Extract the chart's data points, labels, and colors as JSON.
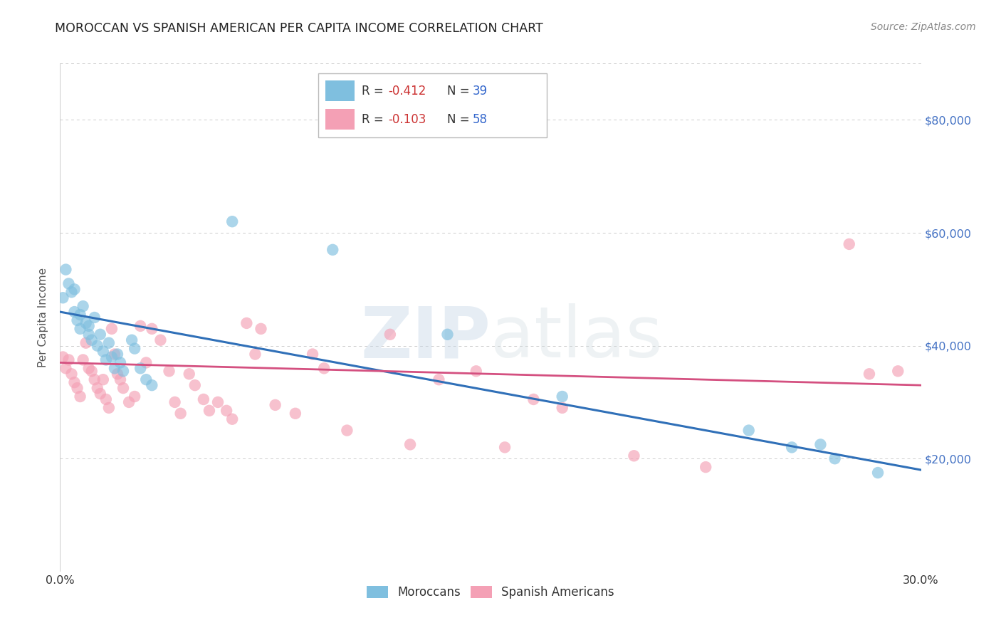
{
  "title": "MOROCCAN VS SPANISH AMERICAN PER CAPITA INCOME CORRELATION CHART",
  "source": "Source: ZipAtlas.com",
  "ylabel": "Per Capita Income",
  "watermark_zip": "ZIP",
  "watermark_atlas": "atlas",
  "ylim": [
    0,
    90000
  ],
  "xlim": [
    0.0,
    0.3
  ],
  "yticks": [
    0,
    20000,
    40000,
    60000,
    80000
  ],
  "ytick_labels": [
    "",
    "$20,000",
    "$40,000",
    "$60,000",
    "$80,000"
  ],
  "xtick_labels_show": [
    "0.0%",
    "30.0%"
  ],
  "blue_color": "#7fbfdf",
  "pink_color": "#f4a0b5",
  "blue_line_color": "#3070b8",
  "pink_line_color": "#d45080",
  "blue_intercept": 46000,
  "blue_slope": -93333,
  "pink_intercept": 37000,
  "pink_slope": -13333,
  "blue_points": [
    [
      0.001,
      48500
    ],
    [
      0.002,
      53500
    ],
    [
      0.003,
      51000
    ],
    [
      0.004,
      49500
    ],
    [
      0.005,
      50000
    ],
    [
      0.005,
      46000
    ],
    [
      0.006,
      44500
    ],
    [
      0.007,
      45500
    ],
    [
      0.007,
      43000
    ],
    [
      0.008,
      47000
    ],
    [
      0.009,
      44000
    ],
    [
      0.01,
      43500
    ],
    [
      0.01,
      42000
    ],
    [
      0.011,
      41000
    ],
    [
      0.012,
      45000
    ],
    [
      0.013,
      40000
    ],
    [
      0.014,
      42000
    ],
    [
      0.015,
      39000
    ],
    [
      0.016,
      37500
    ],
    [
      0.017,
      40500
    ],
    [
      0.018,
      38000
    ],
    [
      0.019,
      36000
    ],
    [
      0.02,
      38500
    ],
    [
      0.021,
      37000
    ],
    [
      0.022,
      35500
    ],
    [
      0.025,
      41000
    ],
    [
      0.026,
      39500
    ],
    [
      0.028,
      36000
    ],
    [
      0.03,
      34000
    ],
    [
      0.032,
      33000
    ],
    [
      0.06,
      62000
    ],
    [
      0.095,
      57000
    ],
    [
      0.135,
      42000
    ],
    [
      0.175,
      31000
    ],
    [
      0.24,
      25000
    ],
    [
      0.255,
      22000
    ],
    [
      0.265,
      22500
    ],
    [
      0.27,
      20000
    ],
    [
      0.285,
      17500
    ]
  ],
  "pink_points": [
    [
      0.001,
      38000
    ],
    [
      0.002,
      36000
    ],
    [
      0.003,
      37500
    ],
    [
      0.004,
      35000
    ],
    [
      0.005,
      33500
    ],
    [
      0.006,
      32500
    ],
    [
      0.007,
      31000
    ],
    [
      0.008,
      37500
    ],
    [
      0.009,
      40500
    ],
    [
      0.01,
      36000
    ],
    [
      0.011,
      35500
    ],
    [
      0.012,
      34000
    ],
    [
      0.013,
      32500
    ],
    [
      0.014,
      31500
    ],
    [
      0.015,
      34000
    ],
    [
      0.016,
      30500
    ],
    [
      0.017,
      29000
    ],
    [
      0.018,
      43000
    ],
    [
      0.019,
      38500
    ],
    [
      0.02,
      35000
    ],
    [
      0.021,
      34000
    ],
    [
      0.022,
      32500
    ],
    [
      0.024,
      30000
    ],
    [
      0.026,
      31000
    ],
    [
      0.028,
      43500
    ],
    [
      0.03,
      37000
    ],
    [
      0.032,
      43000
    ],
    [
      0.035,
      41000
    ],
    [
      0.038,
      35500
    ],
    [
      0.04,
      30000
    ],
    [
      0.042,
      28000
    ],
    [
      0.045,
      35000
    ],
    [
      0.047,
      33000
    ],
    [
      0.05,
      30500
    ],
    [
      0.052,
      28500
    ],
    [
      0.055,
      30000
    ],
    [
      0.058,
      28500
    ],
    [
      0.06,
      27000
    ],
    [
      0.065,
      44000
    ],
    [
      0.068,
      38500
    ],
    [
      0.07,
      43000
    ],
    [
      0.075,
      29500
    ],
    [
      0.082,
      28000
    ],
    [
      0.088,
      38500
    ],
    [
      0.092,
      36000
    ],
    [
      0.1,
      25000
    ],
    [
      0.115,
      42000
    ],
    [
      0.122,
      22500
    ],
    [
      0.132,
      34000
    ],
    [
      0.145,
      35500
    ],
    [
      0.155,
      22000
    ],
    [
      0.165,
      30500
    ],
    [
      0.175,
      29000
    ],
    [
      0.2,
      20500
    ],
    [
      0.225,
      18500
    ],
    [
      0.275,
      58000
    ],
    [
      0.282,
      35000
    ],
    [
      0.292,
      35500
    ]
  ],
  "background_color": "#ffffff",
  "grid_color": "#cccccc",
  "title_color": "#222222",
  "source_color": "#888888",
  "axis_label_color": "#555555",
  "right_ytick_color": "#4472c4",
  "xtick_color": "#333333",
  "legend_blue_R": "R = ",
  "legend_blue_R_val": "-0.412",
  "legend_blue_N": "  N = ",
  "legend_blue_N_val": "39",
  "legend_pink_R": "R = ",
  "legend_pink_R_val": "-0.103",
  "legend_pink_N": "  N = ",
  "legend_pink_N_val": "58",
  "legend_sublabel_blue": "Moroccans",
  "legend_sublabel_pink": "Spanish Americans",
  "R_val_color": "#cc3333",
  "N_val_color": "#3366cc"
}
